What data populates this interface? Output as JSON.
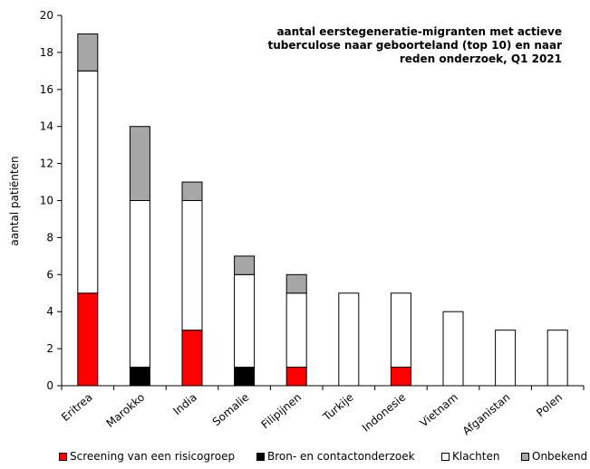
{
  "chart_data": {
    "type": "bar",
    "stacked": true,
    "title_lines": [
      "aantal eerstegeneratie-migranten met actieve",
      "tuberculose naar geboorteland (top 10) en naar",
      "reden onderzoek, Q1 2021"
    ],
    "ylabel": "aantal patiënten",
    "ylim": [
      0,
      20
    ],
    "yticks": [
      0,
      2,
      4,
      6,
      8,
      10,
      12,
      14,
      16,
      18,
      20
    ],
    "grid": false,
    "legend_position": "bottom",
    "categories": [
      "Eritrea",
      "Marokko",
      "India",
      "Somalie",
      "Filipijnen",
      "Turkije",
      "Indonesie",
      "Vietnam",
      "Afganistan",
      "Polen"
    ],
    "series": [
      {
        "name": "Screening van een risicogroep",
        "color": "#ff0000",
        "values": [
          5,
          0,
          3,
          0,
          1,
          0,
          1,
          0,
          0,
          0
        ]
      },
      {
        "name": "Bron- en contactonderzoek",
        "color": "#000000",
        "values": [
          0,
          1,
          0,
          1,
          0,
          0,
          0,
          0,
          0,
          0
        ]
      },
      {
        "name": "Klachten",
        "color": "#ffffff",
        "values": [
          12,
          9,
          7,
          5,
          4,
          5,
          4,
          4,
          3,
          3
        ]
      },
      {
        "name": "Onbekend",
        "color": "#a6a6a6",
        "values": [
          2,
          4,
          1,
          1,
          1,
          0,
          0,
          0,
          0,
          0
        ]
      }
    ]
  }
}
